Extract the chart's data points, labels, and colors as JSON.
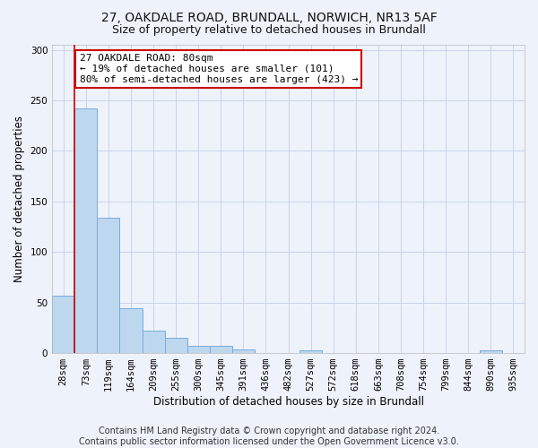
{
  "title_line1": "27, OAKDALE ROAD, BRUNDALL, NORWICH, NR13 5AF",
  "title_line2": "Size of property relative to detached houses in Brundall",
  "xlabel": "Distribution of detached houses by size in Brundall",
  "ylabel": "Number of detached properties",
  "bar_labels": [
    "28sqm",
    "73sqm",
    "119sqm",
    "164sqm",
    "209sqm",
    "255sqm",
    "300sqm",
    "345sqm",
    "391sqm",
    "436sqm",
    "482sqm",
    "527sqm",
    "572sqm",
    "618sqm",
    "663sqm",
    "708sqm",
    "754sqm",
    "799sqm",
    "844sqm",
    "890sqm",
    "935sqm"
  ],
  "bar_values": [
    57,
    242,
    134,
    44,
    22,
    15,
    7,
    7,
    4,
    0,
    0,
    3,
    0,
    0,
    0,
    0,
    0,
    0,
    0,
    3,
    0
  ],
  "bar_color": "#bdd7ee",
  "bar_edge_color": "#7aabdb",
  "background_color": "#eef2fb",
  "grid_color": "#c9d4ea",
  "vline_color": "#cc0000",
  "vline_x": 0.5,
  "annotation_text": "27 OAKDALE ROAD: 80sqm\n← 19% of detached houses are smaller (101)\n80% of semi-detached houses are larger (423) →",
  "annotation_box_color": "#ffffff",
  "annotation_box_edge": "#cc0000",
  "ylim": [
    0,
    305
  ],
  "yticks": [
    0,
    50,
    100,
    150,
    200,
    250,
    300
  ],
  "footnote": "Contains HM Land Registry data © Crown copyright and database right 2024.\nContains public sector information licensed under the Open Government Licence v3.0.",
  "title1_fontsize": 10,
  "title2_fontsize": 9,
  "xlabel_fontsize": 8.5,
  "ylabel_fontsize": 8.5,
  "tick_fontsize": 7.5,
  "annotation_fontsize": 8,
  "footnote_fontsize": 7
}
